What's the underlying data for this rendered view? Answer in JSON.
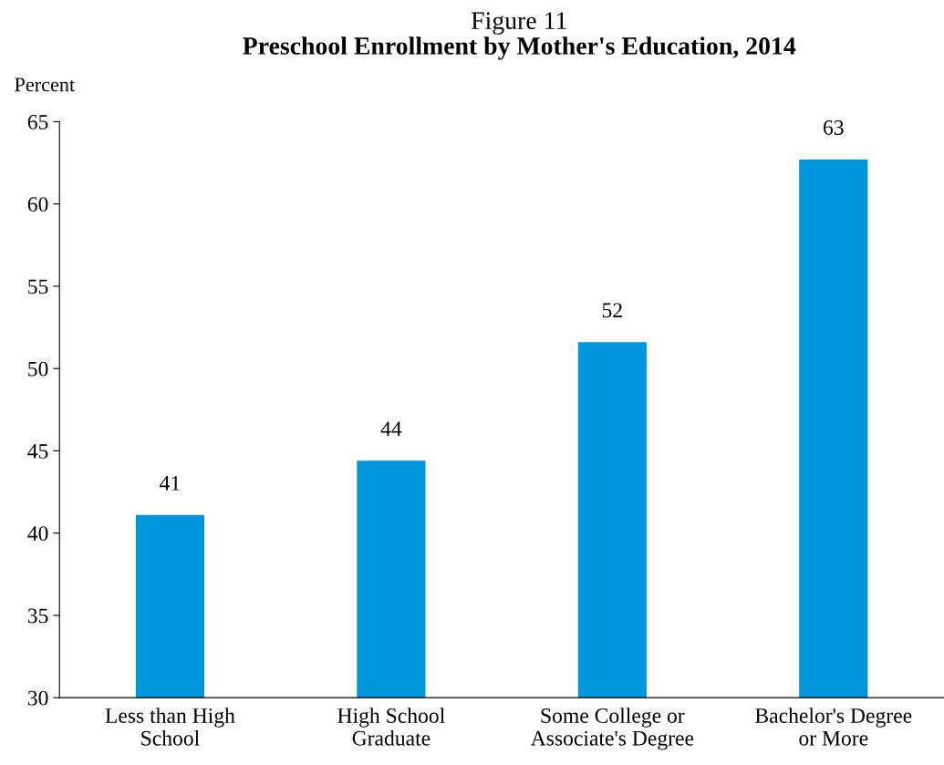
{
  "chart_data": {
    "type": "bar",
    "title": "Figure 11",
    "subtitle": "Preschool Enrollment by Mother's Education, 2014",
    "ylabel": "Percent",
    "categories": [
      "Less than High School",
      "High School Graduate",
      "Some College or Associate's Degree",
      "Bachelor's Degree or More"
    ],
    "values": [
      41.1,
      44.4,
      51.6,
      62.7
    ],
    "value_labels": [
      "41",
      "44",
      "52",
      "63"
    ],
    "color": "#0096db",
    "ylim": [
      30,
      65
    ],
    "yticks": [
      30,
      35,
      40,
      45,
      50,
      55,
      60,
      65
    ],
    "grid": false,
    "legend": false
  }
}
